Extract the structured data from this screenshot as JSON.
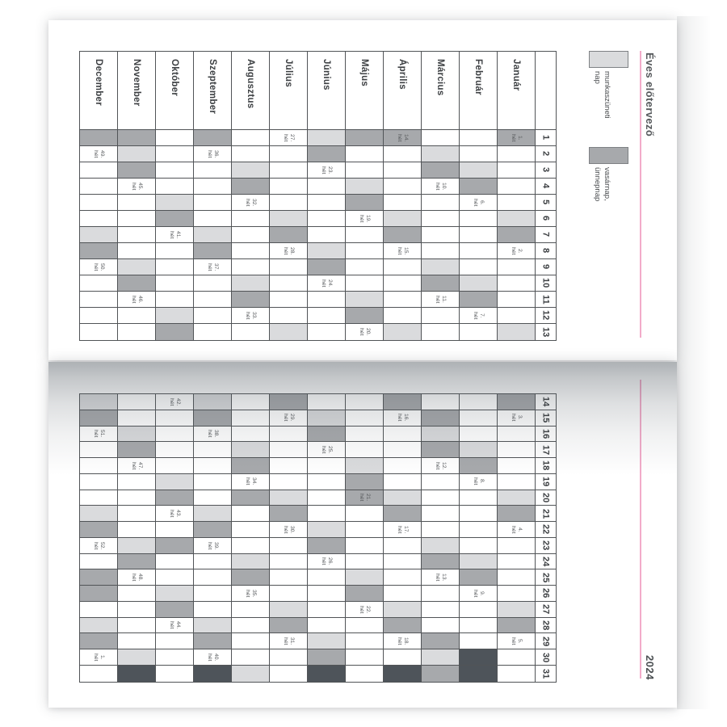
{
  "planner": {
    "title": "Éves előtervező",
    "year": "2024",
    "week_word": "hét",
    "legend": [
      {
        "name": "workfree-day",
        "swatch": "#dadbdd",
        "label_lines": [
          "munkaszüneti",
          "nap"
        ]
      },
      {
        "name": "sunday-holiday",
        "swatch": "#a7a9ac",
        "label_lines": [
          "vasárnap,",
          "ünnepnap"
        ]
      }
    ],
    "colors": {
      "saturday_fill": "#dadbdd",
      "sunday_holiday_fill": "#a7a9ac",
      "nonexistent_day_fill": "#4e545a",
      "grid_line": "#515457",
      "header_text": "#3e4144",
      "week_text": "#54575a",
      "accent_pink": "#f2abc9"
    },
    "top_days": [
      1,
      2,
      3,
      4,
      5,
      6,
      7,
      8,
      9,
      10,
      11,
      12,
      13
    ],
    "bottom_days": [
      14,
      15,
      16,
      17,
      18,
      19,
      20,
      21,
      22,
      23,
      24,
      25,
      26,
      27,
      28,
      29,
      30,
      31
    ],
    "months": [
      {
        "name": "December",
        "weeks": {
          "2": "49.",
          "9": "50.",
          "16": "51.",
          "23": "52.",
          "30": "1."
        },
        "sat": [
          7,
          14,
          21,
          28
        ],
        "sun": [
          1,
          8,
          15,
          22,
          25,
          26,
          29
        ],
        "none": []
      },
      {
        "name": "November",
        "weeks": {
          "4": "45.",
          "11": "46.",
          "18": "47.",
          "25": "48."
        },
        "sat": [
          2,
          9,
          16,
          23,
          30
        ],
        "sun": [
          1,
          3,
          10,
          17,
          24
        ],
        "none": [
          31
        ]
      },
      {
        "name": "Október",
        "weeks": {
          "7": "41.",
          "14": "42.",
          "21": "43.",
          "28": "44."
        },
        "sat": [
          5,
          12,
          19,
          26
        ],
        "sun": [
          6,
          13,
          20,
          23,
          27
        ],
        "none": []
      },
      {
        "name": "Szeptember",
        "weeks": {
          "2": "36.",
          "9": "37.",
          "16": "38.",
          "23": "39.",
          "30": "40."
        },
        "sat": [
          7,
          14,
          21,
          28
        ],
        "sun": [
          1,
          8,
          15,
          22,
          29
        ],
        "none": [
          31
        ]
      },
      {
        "name": "Augusztus",
        "weeks": {
          "5": "32.",
          "12": "33.",
          "19": "34.",
          "26": "35."
        },
        "sat": [
          3,
          10,
          17,
          24,
          31
        ],
        "sun": [
          4,
          11,
          18,
          20,
          25
        ],
        "none": []
      },
      {
        "name": "Július",
        "weeks": {
          "1": "27.",
          "8": "28.",
          "15": "29.",
          "22": "30.",
          "29": "31."
        },
        "sat": [
          6,
          13,
          20,
          27
        ],
        "sun": [
          7,
          14,
          21,
          28
        ],
        "none": []
      },
      {
        "name": "Június",
        "weeks": {
          "3": "23.",
          "10": "24.",
          "17": "25.",
          "24": "26."
        },
        "sat": [
          1,
          8,
          15,
          22,
          29
        ],
        "sun": [
          2,
          9,
          16,
          23,
          30
        ],
        "none": [
          31
        ]
      },
      {
        "name": "Május",
        "weeks": {
          "6": "19.",
          "13": "20.",
          "20": "21.",
          "27": "22."
        },
        "sat": [
          4,
          11,
          18,
          25
        ],
        "sun": [
          1,
          5,
          12,
          19,
          20,
          26
        ],
        "none": []
      },
      {
        "name": "Április",
        "weeks": {
          "1": "14.",
          "8": "15.",
          "15": "16.",
          "22": "17.",
          "29": "18."
        },
        "sat": [
          6,
          13,
          20,
          27
        ],
        "sun": [
          1,
          7,
          14,
          21,
          28
        ],
        "none": [
          31
        ]
      },
      {
        "name": "Március",
        "weeks": {
          "4": "10.",
          "11": "11.",
          "18": "12.",
          "25": "13."
        },
        "sat": [
          2,
          9,
          16,
          23,
          30
        ],
        "sun": [
          3,
          10,
          15,
          17,
          24,
          29,
          31
        ],
        "none": []
      },
      {
        "name": "Február",
        "weeks": {
          "5": "6.",
          "12": "7.",
          "19": "8.",
          "26": "9."
        },
        "sat": [
          3,
          10,
          17,
          24
        ],
        "sun": [
          4,
          11,
          18,
          25
        ],
        "none": [
          30,
          31
        ]
      },
      {
        "name": "Január",
        "weeks": {
          "1": "1.",
          "8": "2.",
          "15": "3.",
          "22": "4.",
          "29": "5."
        },
        "sat": [
          6,
          13,
          20,
          27
        ],
        "sun": [
          1,
          7,
          14,
          21,
          28
        ],
        "none": []
      }
    ]
  }
}
